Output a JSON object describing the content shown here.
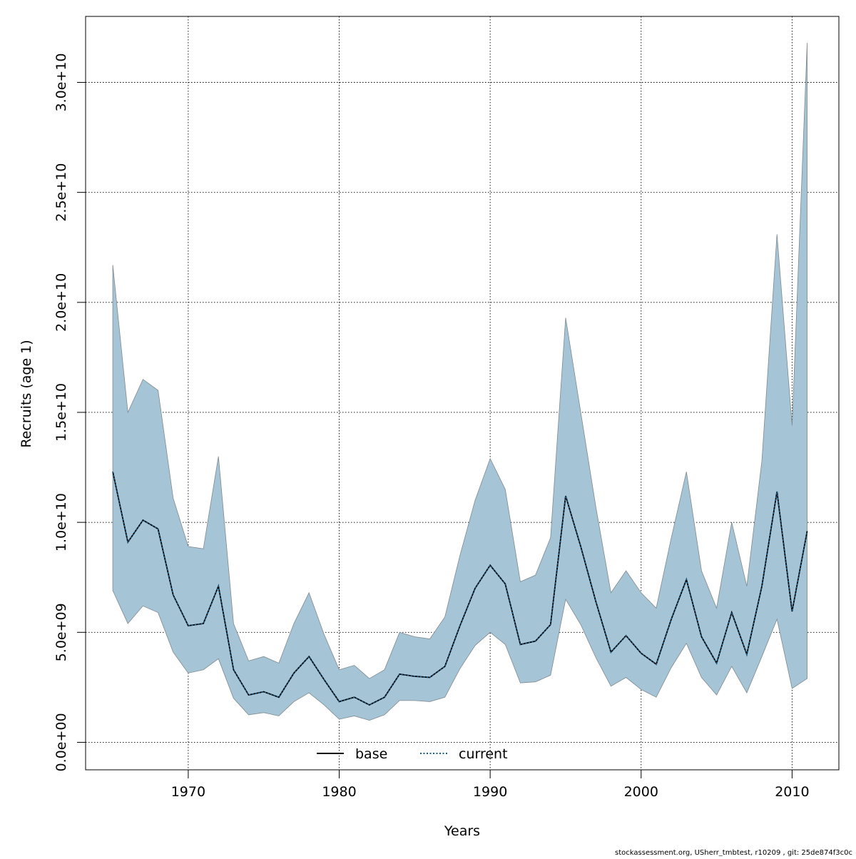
{
  "chart_data": {
    "type": "area",
    "xlabel": "Years",
    "ylabel": "Recruits (age 1)",
    "xlim": [
      1963.2,
      2013.1
    ],
    "ylim": [
      -1250000000.0,
      33000000000.0
    ],
    "x_ticks": [
      1970,
      1980,
      1990,
      2000,
      2010
    ],
    "x_tick_labels": [
      "1970",
      "1980",
      "1990",
      "2000",
      "2010"
    ],
    "y_ticks": [
      0,
      5000000000.0,
      10000000000.0,
      15000000000.0,
      20000000000.0,
      25000000000.0,
      30000000000.0
    ],
    "y_tick_labels": [
      "0.0e+00",
      "5.0e+09",
      "1.0e+10",
      "1.5e+10",
      "2.0e+10",
      "2.5e+10",
      "3.0e+10"
    ],
    "grid": true,
    "legend_position": "bottom-center",
    "x": [
      1965,
      1966,
      1967,
      1968,
      1969,
      1970,
      1971,
      1972,
      1973,
      1974,
      1975,
      1976,
      1977,
      1978,
      1979,
      1980,
      1981,
      1982,
      1983,
      1984,
      1985,
      1986,
      1987,
      1988,
      1989,
      1990,
      1991,
      1992,
      1993,
      1994,
      1995,
      1996,
      1997,
      1998,
      1999,
      2000,
      2001,
      2002,
      2003,
      2004,
      2005,
      2006,
      2007,
      2008,
      2009,
      2010,
      2011
    ],
    "band": {
      "color": "#a5c4d5",
      "edge_color": "#7f8a90",
      "upper": [
        21700000000.0,
        15000000000.0,
        16500000000.0,
        16000000000.0,
        11100000000.0,
        8900000000.0,
        8800000000.0,
        13000000000.0,
        5400000000.0,
        3700000000.0,
        3900000000.0,
        3600000000.0,
        5400000000.0,
        6800000000.0,
        4900000000.0,
        3300000000.0,
        3500000000.0,
        2900000000.0,
        3300000000.0,
        5000000000.0,
        4800000000.0,
        4700000000.0,
        5700000000.0,
        8500000000.0,
        11000000000.0,
        12900000000.0,
        11500000000.0,
        7300000000.0,
        7600000000.0,
        9300000000.0,
        19300000000.0,
        15000000000.0,
        10700000000.0,
        6800000000.0,
        7800000000.0,
        6800000000.0,
        6100000000.0,
        9300000000.0,
        12300000000.0,
        7800000000.0,
        6100000000.0,
        10000000000.0,
        7100000000.0,
        12800000000.0,
        23100000000.0,
        14400000000.0,
        31800000000.0
      ],
      "lower": [
        6900000000.0,
        5400000000.0,
        6200000000.0,
        5900000000.0,
        4100000000.0,
        3150000000.0,
        3300000000.0,
        3800000000.0,
        2000000000.0,
        1250000000.0,
        1350000000.0,
        1200000000.0,
        1850000000.0,
        2250000000.0,
        1700000000.0,
        1050000000.0,
        1200000000.0,
        1000000000.0,
        1250000000.0,
        1900000000.0,
        1900000000.0,
        1850000000.0,
        2050000000.0,
        3350000000.0,
        4400000000.0,
        5000000000.0,
        4450000000.0,
        2700000000.0,
        2750000000.0,
        3050000000.0,
        6500000000.0,
        5350000000.0,
        3850000000.0,
        2550000000.0,
        2950000000.0,
        2400000000.0,
        2050000000.0,
        3400000000.0,
        4500000000.0,
        2950000000.0,
        2150000000.0,
        3450000000.0,
        2250000000.0,
        3900000000.0,
        5600000000.0,
        2450000000.0,
        2900000000.0
      ]
    },
    "series": [
      {
        "name": "base",
        "color": "#000000",
        "style": "solid",
        "values": [
          12300000000.0,
          9100000000.0,
          10100000000.0,
          9700000000.0,
          6700000000.0,
          5300000000.0,
          5400000000.0,
          7100000000.0,
          3300000000.0,
          2150000000.0,
          2300000000.0,
          2050000000.0,
          3150000000.0,
          3900000000.0,
          2850000000.0,
          1850000000.0,
          2050000000.0,
          1700000000.0,
          2050000000.0,
          3100000000.0,
          3000000000.0,
          2950000000.0,
          3450000000.0,
          5300000000.0,
          7000000000.0,
          8050000000.0,
          7200000000.0,
          4450000000.0,
          4600000000.0,
          5350000000.0,
          11200000000.0,
          8900000000.0,
          6400000000.0,
          4100000000.0,
          4850000000.0,
          4050000000.0,
          3550000000.0,
          5600000000.0,
          7400000000.0,
          4800000000.0,
          3600000000.0,
          5900000000.0,
          4000000000.0,
          7100000000.0,
          11400000000.0,
          5950000000.0,
          9600000000.0
        ]
      },
      {
        "name": "current",
        "color": "#1a5d86",
        "style": "dotted",
        "values": [
          12300000000.0,
          9100000000.0,
          10100000000.0,
          9700000000.0,
          6700000000.0,
          5300000000.0,
          5400000000.0,
          7100000000.0,
          3300000000.0,
          2150000000.0,
          2300000000.0,
          2050000000.0,
          3150000000.0,
          3900000000.0,
          2850000000.0,
          1850000000.0,
          2050000000.0,
          1700000000.0,
          2050000000.0,
          3100000000.0,
          3000000000.0,
          2950000000.0,
          3450000000.0,
          5300000000.0,
          7000000000.0,
          8050000000.0,
          7200000000.0,
          4450000000.0,
          4600000000.0,
          5350000000.0,
          11200000000.0,
          8900000000.0,
          6400000000.0,
          4100000000.0,
          4850000000.0,
          4050000000.0,
          3550000000.0,
          5600000000.0,
          7400000000.0,
          4800000000.0,
          3600000000.0,
          5900000000.0,
          4000000000.0,
          7100000000.0,
          11400000000.0,
          5950000000.0,
          9600000000.0
        ]
      }
    ],
    "legend": [
      {
        "label": "base"
      },
      {
        "label": "current"
      }
    ]
  },
  "footer": "stockassessment.org, USherr_tmbtest, r10209 , git: 25de874f3c0c"
}
